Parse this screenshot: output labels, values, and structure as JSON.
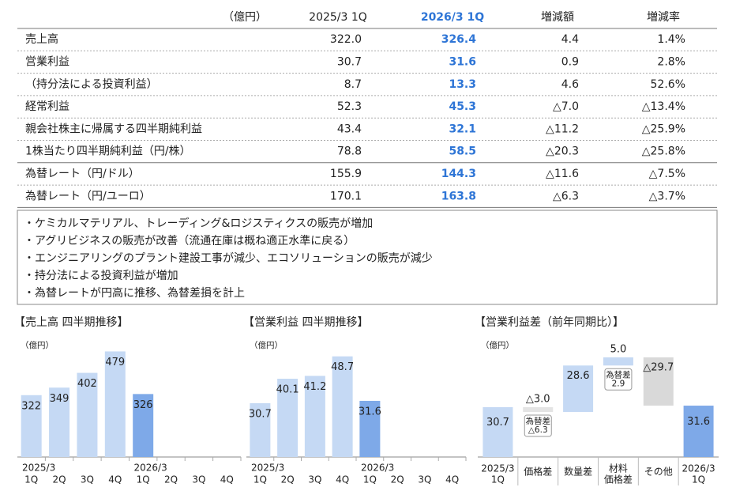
{
  "table": {
    "unit": "（億円）",
    "columns": [
      "2025/3 1Q",
      "2026/3 1Q",
      "増減額",
      "増減率"
    ],
    "rows": [
      [
        "売上高",
        "322.0",
        "326.4",
        "4.4",
        "1.4%"
      ],
      [
        "営業利益",
        "30.7",
        "31.6",
        "0.9",
        "2.8%"
      ],
      [
        "（持分法による投資利益）",
        "8.7",
        "13.3",
        "4.6",
        "52.6%"
      ],
      [
        "経常利益",
        "52.3",
        "45.3",
        "△7.0",
        "△13.4%"
      ],
      [
        "親会社株主に帰属する四半期純利益",
        "43.4",
        "32.1",
        "△11.2",
        "△25.9%"
      ],
      [
        "1株当たり四半期純利益（円/株）",
        "78.8",
        "58.5",
        "△20.3",
        "△25.8%"
      ],
      [
        "為替レート（円/ドル）",
        "155.9",
        "144.3",
        "△11.6",
        "△7.5%"
      ],
      [
        "為替レート（円/ユーロ）",
        "170.1",
        "163.8",
        "△6.3",
        "△3.7%"
      ]
    ]
  },
  "notes": [
    "・ケミカルマテリアル、トレーディング&ロジスティクスの販売が増加",
    "・アグリビジネスの販売が改善（流通在庫は概ね適正水準に戻る）",
    "・エンジニアリングのプラント建設工事が減少、エコソリューションの販売が減少",
    "・持分法による投資利益が増加",
    "・為替レートが円高に推移、為替差損を計上"
  ],
  "chart_data": [
    {
      "type": "bar",
      "title": "【売上高 四半期推移】",
      "unit": "（億円）",
      "ylim": [
        100,
        520
      ],
      "groups": [
        {
          "label": "2025/3",
          "categories": [
            "1Q",
            "2Q",
            "3Q",
            "4Q"
          ],
          "values": [
            322,
            349,
            402,
            479
          ],
          "color": "#c5d9f4"
        },
        {
          "label": "2026/3",
          "categories": [
            "1Q",
            "2Q",
            "3Q",
            "4Q"
          ],
          "values": [
            326,
            null,
            null,
            null
          ],
          "color": "#7ea9e8"
        }
      ]
    },
    {
      "type": "bar",
      "title": "【営業利益 四半期推移】",
      "unit": "（億円）",
      "ylim": [
        10,
        55
      ],
      "groups": [
        {
          "label": "2025/3",
          "categories": [
            "1Q",
            "2Q",
            "3Q",
            "4Q"
          ],
          "values": [
            30.7,
            40.1,
            41.2,
            48.7
          ],
          "color": "#c5d9f4"
        },
        {
          "label": "2026/3",
          "categories": [
            "1Q",
            "2Q",
            "3Q",
            "4Q"
          ],
          "values": [
            31.6,
            null,
            null,
            null
          ],
          "color": "#7ea9e8"
        }
      ]
    },
    {
      "type": "waterfall",
      "title": "【営業利益差（前年同期比）】",
      "unit": "（億円）",
      "ylim": [
        0,
        72
      ],
      "categories": [
        [
          "2025/3",
          "1Q"
        ],
        "価格差",
        "数量差",
        [
          "材料",
          "価格差"
        ],
        "その他",
        [
          "2026/3",
          "1Q"
        ]
      ],
      "values": [
        30.7,
        -3.0,
        28.6,
        5.0,
        -29.7,
        31.6
      ],
      "value_labels": [
        "30.7",
        "△3.0",
        "28.6",
        "5.0",
        "△29.7",
        "31.6"
      ],
      "notes": [
        null,
        [
          "為替差",
          "△6.3"
        ],
        null,
        [
          "為替差",
          "2.9"
        ],
        null,
        null
      ],
      "colors": [
        "#c5d9f4",
        "#e4e4e4",
        "#c5d9f4",
        "#c5d9f4",
        "#d9d9d9",
        "#7ea9e8"
      ]
    }
  ]
}
